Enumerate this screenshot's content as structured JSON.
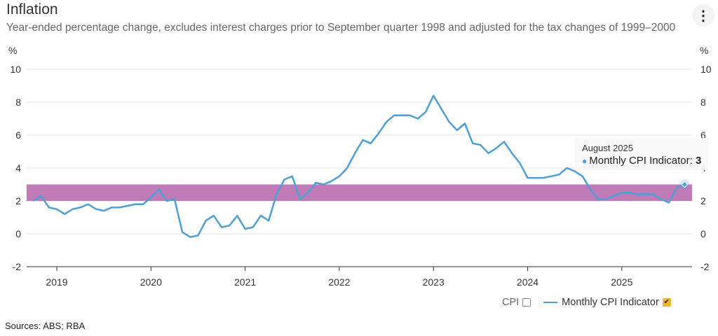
{
  "header": {
    "title": "Inflation",
    "subtitle": "Year-ended percentage change, excludes interest charges prior to September quarter 1998 and adjusted for the tax changes of 1999–2000",
    "menu_icon": "kebab-menu-icon"
  },
  "footer": {
    "sources": "Sources: ABS; RBA"
  },
  "legend": {
    "items": [
      {
        "label": "CPI",
        "checked": false
      },
      {
        "label": "Monthly CPI Indicator",
        "checked": true
      }
    ]
  },
  "tooltip": {
    "date": "August 2025",
    "series": "Monthly CPI Indicator: ",
    "value": "3"
  },
  "colors": {
    "line": "#4e9fd8",
    "target_band": "#c07ab5",
    "grid": "#e6e6e6"
  },
  "chart_data": {
    "type": "line",
    "title": "Inflation",
    "y_unit_left": "%",
    "y_unit_right": "%",
    "ylim": [
      -2,
      10
    ],
    "y_ticks": [
      "-2",
      "0",
      "2",
      "4",
      "6",
      "8",
      "10"
    ],
    "x_ticks": [
      "2019",
      "2020",
      "2021",
      "2022",
      "2023",
      "2024",
      "2025"
    ],
    "grid": true,
    "target_band": [
      2,
      3
    ],
    "legend_position": "bottom-right",
    "x": [
      "2018-09",
      "2018-10",
      "2018-11",
      "2018-12",
      "2019-01",
      "2019-02",
      "2019-03",
      "2019-04",
      "2019-05",
      "2019-06",
      "2019-07",
      "2019-08",
      "2019-09",
      "2019-10",
      "2019-11",
      "2019-12",
      "2020-01",
      "2020-02",
      "2020-03",
      "2020-04",
      "2020-05",
      "2020-06",
      "2020-07",
      "2020-08",
      "2020-09",
      "2020-10",
      "2020-11",
      "2020-12",
      "2021-01",
      "2021-02",
      "2021-03",
      "2021-04",
      "2021-05",
      "2021-06",
      "2021-07",
      "2021-08",
      "2021-09",
      "2021-10",
      "2021-11",
      "2021-12",
      "2022-01",
      "2022-02",
      "2022-03",
      "2022-04",
      "2022-05",
      "2022-06",
      "2022-07",
      "2022-08",
      "2022-09",
      "2022-10",
      "2022-11",
      "2022-12",
      "2023-01",
      "2023-02",
      "2023-03",
      "2023-04",
      "2023-05",
      "2023-06",
      "2023-07",
      "2023-08",
      "2023-09",
      "2023-10",
      "2023-11",
      "2023-12",
      "2024-01",
      "2024-02",
      "2024-03",
      "2024-04",
      "2024-05",
      "2024-06",
      "2024-07",
      "2024-08",
      "2024-09",
      "2024-10",
      "2024-11",
      "2024-12",
      "2025-01",
      "2025-02",
      "2025-03",
      "2025-04",
      "2025-05",
      "2025-06",
      "2025-07",
      "2025-08"
    ],
    "series": [
      {
        "name": "Monthly CPI Indicator",
        "values": [
          2.0,
          2.3,
          1.6,
          1.5,
          1.2,
          1.5,
          1.6,
          1.8,
          1.5,
          1.4,
          1.6,
          1.6,
          1.7,
          1.8,
          1.8,
          2.2,
          2.7,
          2.0,
          2.1,
          0.1,
          -0.2,
          -0.1,
          0.8,
          1.1,
          0.4,
          0.5,
          1.1,
          0.3,
          0.4,
          1.1,
          0.8,
          2.4,
          3.3,
          3.5,
          2.1,
          2.5,
          3.1,
          3.0,
          3.2,
          3.5,
          4.0,
          4.9,
          5.7,
          5.5,
          6.1,
          6.8,
          7.2,
          7.2,
          7.2,
          7.0,
          7.4,
          8.4,
          7.6,
          6.8,
          6.3,
          6.7,
          5.5,
          5.4,
          4.9,
          5.2,
          5.6,
          4.9,
          4.3,
          3.4,
          3.4,
          3.4,
          3.5,
          3.6,
          4.0,
          3.8,
          3.5,
          2.7,
          2.1,
          2.1,
          2.3,
          2.5,
          2.5,
          2.4,
          2.4,
          2.4,
          2.1,
          1.9,
          2.8,
          3.0
        ]
      }
    ]
  }
}
